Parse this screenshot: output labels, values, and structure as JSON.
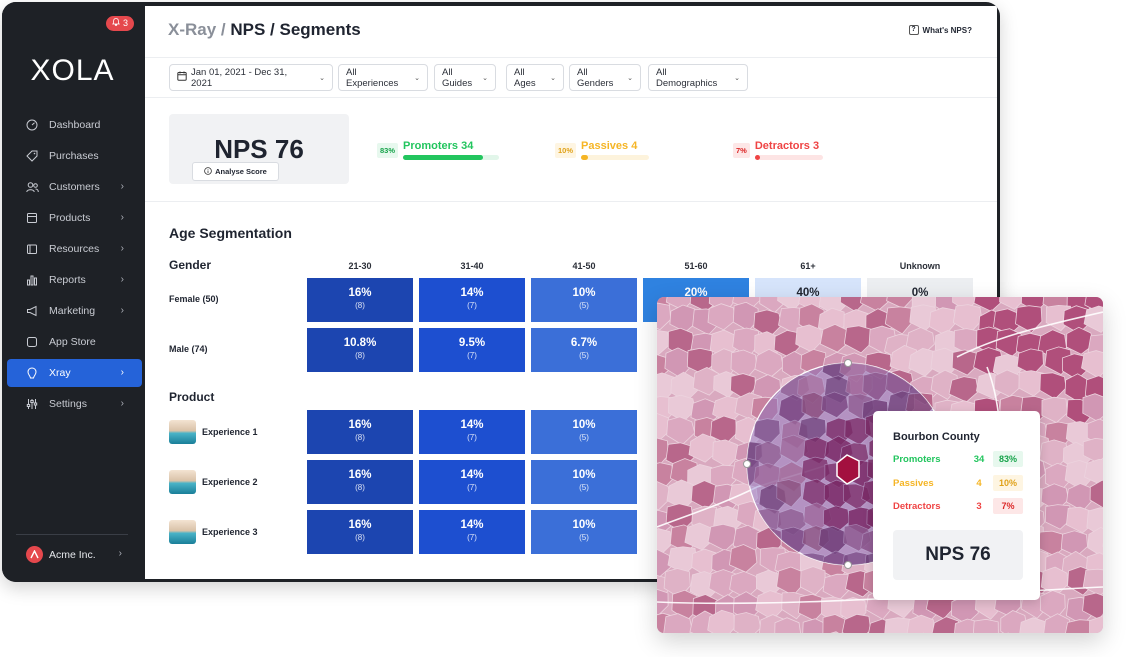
{
  "sidebar": {
    "notification_count": "3",
    "logo": "XOLA",
    "items": [
      {
        "label": "Dashboard",
        "icon": "dashboard-icon",
        "has_chevron": false
      },
      {
        "label": "Purchases",
        "icon": "tag-icon",
        "has_chevron": false
      },
      {
        "label": "Customers",
        "icon": "users-icon",
        "has_chevron": true
      },
      {
        "label": "Products",
        "icon": "box-icon",
        "has_chevron": true
      },
      {
        "label": "Resources",
        "icon": "folder-icon",
        "has_chevron": true
      },
      {
        "label": "Reports",
        "icon": "bar-chart-icon",
        "has_chevron": true
      },
      {
        "label": "Marketing",
        "icon": "megaphone-icon",
        "has_chevron": true
      },
      {
        "label": "App Store",
        "icon": "app-store-icon",
        "has_chevron": false
      },
      {
        "label": "Xray",
        "icon": "xray-icon",
        "has_chevron": true,
        "active": true
      },
      {
        "label": "Settings",
        "icon": "sliders-icon",
        "has_chevron": true
      }
    ],
    "account": "Acme Inc."
  },
  "header": {
    "breadcrumb_muted": "X-Ray /",
    "breadcrumb_main": "NPS / Segments",
    "help_link": "What's NPS?"
  },
  "filters": {
    "date_range": "Jan 01, 2021 - Dec 31, 2021",
    "experiences": "All Experiences",
    "guides": "All Guides",
    "ages": "All Ages",
    "genders": "All Genders",
    "demographics": "All Demographics"
  },
  "score": {
    "nps": "NPS 76",
    "analyse_label": "Analyse Score",
    "promoters": {
      "pct": "83%",
      "label": "Promoters",
      "count": "34",
      "fraction": 0.83,
      "color": "#22c55e"
    },
    "passives": {
      "pct": "10%",
      "label": "Passives",
      "count": "4",
      "fraction": 0.1,
      "color": "#f5b525"
    },
    "detractors": {
      "pct": "7%",
      "label": "Detractors",
      "count": "3",
      "fraction": 0.07,
      "color": "#ef4444"
    }
  },
  "segmentation": {
    "title": "Age Segmentation",
    "gender_label": "Gender",
    "product_label": "Product",
    "columns": [
      "21-30",
      "31-40",
      "41-50",
      "51-60",
      "61+",
      "Unknown"
    ],
    "gender_rows": [
      {
        "label": "Female (50)",
        "cells": [
          {
            "v": "16%",
            "n": "(8)"
          },
          {
            "v": "14%",
            "n": "(7)"
          },
          {
            "v": "10%",
            "n": "(5)"
          },
          {
            "v": "20%",
            "n": ""
          },
          {
            "v": "40%",
            "n": ""
          },
          {
            "v": "0%",
            "n": ""
          }
        ]
      },
      {
        "label": "Male (74)",
        "cells": [
          {
            "v": "10.8%",
            "n": "(8)"
          },
          {
            "v": "9.5%",
            "n": "(7)"
          },
          {
            "v": "6.7%",
            "n": "(5)"
          }
        ]
      }
    ],
    "product_rows": [
      {
        "label": "Experience 1",
        "cells": [
          {
            "v": "16%",
            "n": "(8)"
          },
          {
            "v": "14%",
            "n": "(7)"
          },
          {
            "v": "10%",
            "n": "(5)"
          }
        ]
      },
      {
        "label": "Experience 2",
        "cells": [
          {
            "v": "16%",
            "n": "(8)"
          },
          {
            "v": "14%",
            "n": "(7)"
          },
          {
            "v": "10%",
            "n": "(5)"
          }
        ]
      },
      {
        "label": "Experience 3",
        "cells": [
          {
            "v": "16%",
            "n": "(8)"
          },
          {
            "v": "14%",
            "n": "(7)"
          },
          {
            "v": "10%",
            "n": "(5)"
          }
        ]
      }
    ],
    "column_colors": [
      "#1c45b0",
      "#1d4fd0",
      "#3b6fd8",
      "#2f82e0",
      "#d6e4fb",
      "#eceef1"
    ]
  },
  "county": {
    "name": "Bourbon County",
    "promoters": {
      "label": "Promoters",
      "count": "34",
      "pct": "83%"
    },
    "passives": {
      "label": "Passives",
      "count": "4",
      "pct": "10%"
    },
    "detractors": {
      "label": "Detractors",
      "count": "3",
      "pct": "7%"
    },
    "nps": "NPS 76"
  }
}
